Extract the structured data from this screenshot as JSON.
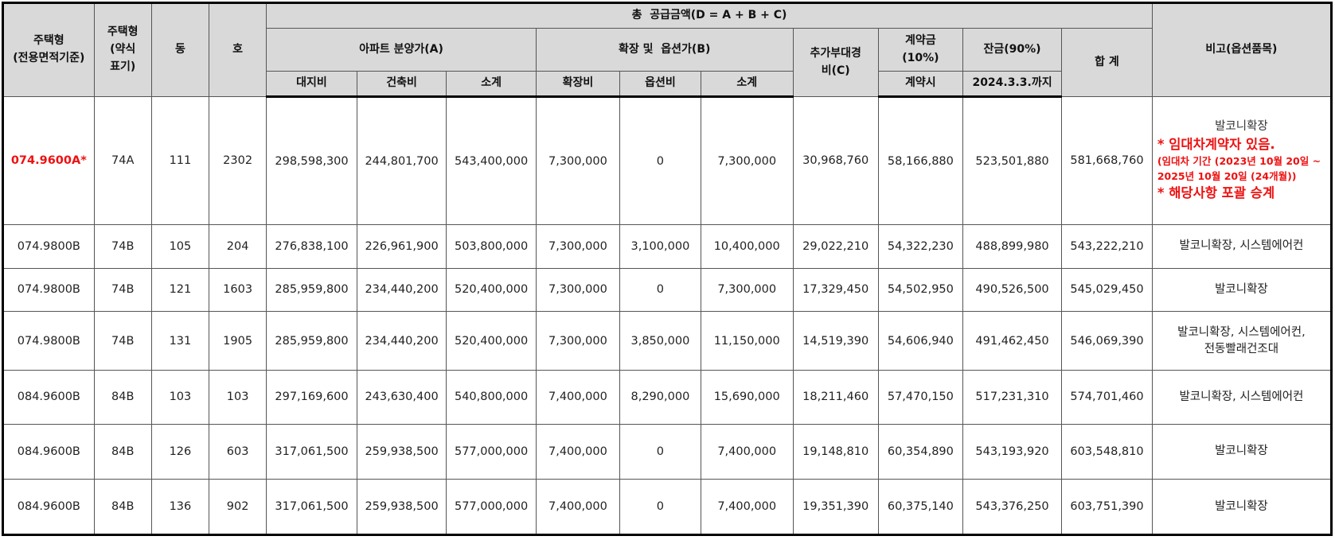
{
  "header": {
    "house_type_area": "주택형\n(전용면적기준)",
    "house_type_short": "주택형\n(약식\n표기)",
    "dong": "동",
    "ho": "호",
    "total_supply": "총  공급금액(D = A + B + C)",
    "apt_price": "아파트 분양가(A)",
    "expansion_option": "확장 및  옵션가(B)",
    "extra_vat": "추가부대경\n비(C)",
    "deposit": "계약금\n(10%)",
    "balance": "잔금(90%)",
    "total": "합 계",
    "remarks": "비고(옵션품목)",
    "land": "대지비",
    "building": "건축비",
    "subtotal_a": "소계",
    "expansion_fee": "확장비",
    "option_fee": "옵션비",
    "subtotal_b": "소계",
    "on_contract": "계약시",
    "balance_due": "2024.3.3.까지"
  },
  "rows": [
    {
      "type": "074.9600A*",
      "short": "74A",
      "dong": "111",
      "ho": "2302",
      "land": "298,598,300",
      "building": "244,801,700",
      "sub_a": "543,400,000",
      "exp": "7,300,000",
      "opt": "0",
      "sub_b": "7,300,000",
      "extra": "30,968,760",
      "deposit": "58,166,880",
      "balance": "523,501,880",
      "total": "581,668,760",
      "remark": "발코니확장",
      "highlight": true,
      "notes": [
        "* 임대차계약자 있음.",
        "(임대차 기간 (2023년 10월 20일 ~ 2025년 10월 20일 (24개월))",
        "* 해당사항 포괄 승계"
      ]
    },
    {
      "type": "074.9800B",
      "short": "74B",
      "dong": "105",
      "ho": "204",
      "land": "276,838,100",
      "building": "226,961,900",
      "sub_a": "503,800,000",
      "exp": "7,300,000",
      "opt": "3,100,000",
      "sub_b": "10,400,000",
      "extra": "29,022,210",
      "deposit": "54,322,230",
      "balance": "488,899,980",
      "total": "543,222,210",
      "remark": "발코니확장, 시스템에어컨"
    },
    {
      "type": "074.9800B",
      "short": "74B",
      "dong": "121",
      "ho": "1603",
      "land": "285,959,800",
      "building": "234,440,200",
      "sub_a": "520,400,000",
      "exp": "7,300,000",
      "opt": "0",
      "sub_b": "7,300,000",
      "extra": "17,329,450",
      "deposit": "54,502,950",
      "balance": "490,526,500",
      "total": "545,029,450",
      "remark": "발코니확장"
    },
    {
      "type": "074.9800B",
      "short": "74B",
      "dong": "131",
      "ho": "1905",
      "land": "285,959,800",
      "building": "234,440,200",
      "sub_a": "520,400,000",
      "exp": "7,300,000",
      "opt": "3,850,000",
      "sub_b": "11,150,000",
      "extra": "14,519,390",
      "deposit": "54,606,940",
      "balance": "491,462,450",
      "total": "546,069,390",
      "remark": "발코니확장, 시스템에어컨,\n전동빨래건조대"
    },
    {
      "type": "084.9600B",
      "short": "84B",
      "dong": "103",
      "ho": "103",
      "land": "297,169,600",
      "building": "243,630,400",
      "sub_a": "540,800,000",
      "exp": "7,400,000",
      "opt": "8,290,000",
      "sub_b": "15,690,000",
      "extra": "18,211,460",
      "deposit": "57,470,150",
      "balance": "517,231,310",
      "total": "574,701,460",
      "remark": "발코니확장, 시스템에어컨"
    },
    {
      "type": "084.9600B",
      "short": "84B",
      "dong": "126",
      "ho": "603",
      "land": "317,061,500",
      "building": "259,938,500",
      "sub_a": "577,000,000",
      "exp": "7,400,000",
      "opt": "0",
      "sub_b": "7,400,000",
      "extra": "19,148,810",
      "deposit": "60,354,890",
      "balance": "543,193,920",
      "total": "603,548,810",
      "remark": "발코니확장"
    },
    {
      "type": "084.9600B",
      "short": "84B",
      "dong": "136",
      "ho": "902",
      "land": "317,061,500",
      "building": "259,938,500",
      "sub_a": "577,000,000",
      "exp": "7,400,000",
      "opt": "0",
      "sub_b": "7,400,000",
      "extra": "19,351,390",
      "deposit": "60,375,140",
      "balance": "543,376,250",
      "total": "603,751,390",
      "remark": "발코니확장"
    }
  ],
  "colors": {
    "highlight": "#ee1111",
    "header_bg": "#d9d9d9"
  }
}
